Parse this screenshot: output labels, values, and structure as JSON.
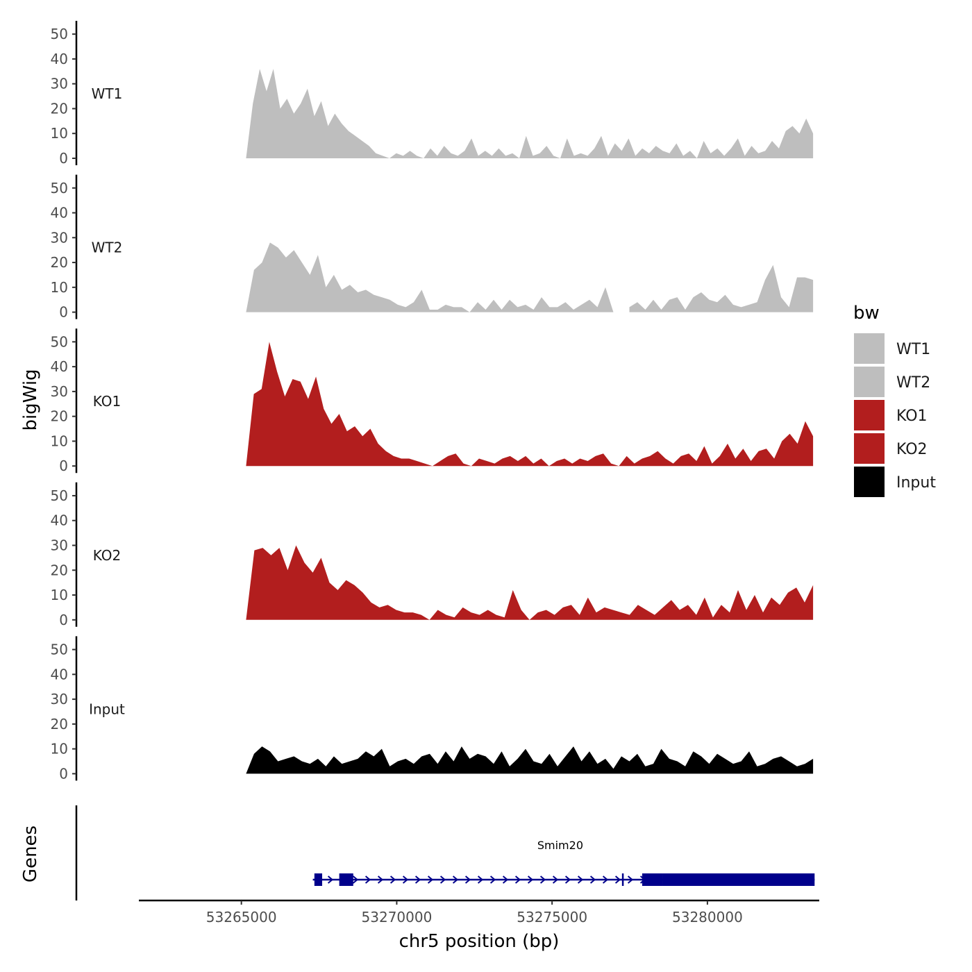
{
  "chart_data": {
    "type": "area",
    "title": "",
    "ylabel": "bigWig",
    "xlabel": "chr5 position (bp)",
    "xlim": [
      53261700,
      53283600
    ],
    "x_range_data": [
      53265150,
      53283400
    ],
    "ylim": [
      0,
      52
    ],
    "y_ticks": [
      "0",
      "10",
      "20",
      "30",
      "40",
      "50"
    ],
    "x_ticks": [
      {
        "value": 53265000,
        "label": "53265000"
      },
      {
        "value": 53270000,
        "label": "53270000"
      },
      {
        "value": 53275000,
        "label": "53275000"
      },
      {
        "value": 53280000,
        "label": "53280000"
      }
    ],
    "series": [
      {
        "name": "WT1",
        "color": "#BEBEBE",
        "values": [
          0,
          22,
          36,
          27,
          36,
          20,
          24,
          18,
          22,
          28,
          17,
          23,
          13,
          18,
          14,
          11,
          9,
          7,
          5,
          2,
          1,
          0,
          2,
          1,
          3,
          1,
          0,
          4,
          1,
          5,
          2,
          1,
          3,
          8,
          1,
          3,
          1,
          4,
          1,
          2,
          0,
          9,
          1,
          2,
          5,
          1,
          0,
          8,
          1,
          2,
          1,
          4,
          9,
          1,
          6,
          3,
          8,
          1,
          4,
          2,
          5,
          3,
          2,
          6,
          1,
          3,
          0,
          7,
          2,
          4,
          1,
          4,
          8,
          1,
          5,
          2,
          3,
          7,
          4,
          11,
          13,
          10,
          16,
          10
        ]
      },
      {
        "name": "WT2",
        "color": "#BEBEBE",
        "values": [
          0,
          17,
          20,
          28,
          26,
          22,
          25,
          20,
          15,
          23,
          10,
          15,
          9,
          11,
          8,
          9,
          7,
          6,
          5,
          3,
          2,
          4,
          9,
          1,
          1,
          3,
          2,
          2,
          0,
          4,
          1,
          5,
          1,
          5,
          2,
          3,
          1,
          6,
          2,
          2,
          4,
          1,
          3,
          5,
          2,
          10,
          0,
          null,
          2,
          4,
          1,
          5,
          1,
          5,
          6,
          1,
          6,
          8,
          5,
          4,
          7,
          3,
          2,
          3,
          4,
          13,
          19,
          6,
          2,
          14,
          14,
          13
        ]
      },
      {
        "name": "KO1",
        "color": "#B21E1E",
        "values": [
          0,
          29,
          31,
          50,
          38,
          28,
          35,
          34,
          27,
          36,
          23,
          17,
          21,
          14,
          16,
          12,
          15,
          9,
          6,
          4,
          3,
          3,
          2,
          1,
          0,
          2,
          4,
          5,
          1,
          0,
          3,
          2,
          1,
          3,
          4,
          2,
          4,
          1,
          3,
          0,
          2,
          3,
          1,
          3,
          2,
          4,
          5,
          1,
          0,
          4,
          1,
          3,
          4,
          6,
          3,
          1,
          4,
          5,
          2,
          8,
          1,
          4,
          9,
          3,
          7,
          2,
          6,
          7,
          3,
          10,
          13,
          9,
          18,
          12
        ]
      },
      {
        "name": "KO2",
        "color": "#B21E1E",
        "values": [
          0,
          28,
          29,
          26,
          29,
          20,
          30,
          23,
          19,
          25,
          15,
          12,
          16,
          14,
          11,
          7,
          5,
          6,
          4,
          3,
          3,
          2,
          0,
          4,
          2,
          1,
          5,
          3,
          2,
          4,
          2,
          1,
          12,
          4,
          0,
          3,
          4,
          2,
          5,
          6,
          2,
          9,
          3,
          5,
          4,
          3,
          2,
          6,
          4,
          2,
          5,
          8,
          4,
          6,
          2,
          9,
          1,
          6,
          3,
          12,
          4,
          10,
          3,
          9,
          6,
          11,
          13,
          7,
          14
        ]
      },
      {
        "name": "Input",
        "color": "#000000",
        "values": [
          0,
          8,
          11,
          9,
          5,
          6,
          7,
          5,
          4,
          6,
          3,
          7,
          4,
          5,
          6,
          9,
          7,
          10,
          3,
          5,
          6,
          4,
          7,
          8,
          4,
          9,
          5,
          11,
          6,
          8,
          7,
          4,
          9,
          3,
          6,
          10,
          5,
          4,
          8,
          3,
          7,
          11,
          5,
          9,
          4,
          6,
          2,
          7,
          5,
          8,
          3,
          4,
          10,
          6,
          5,
          3,
          9,
          7,
          4,
          8,
          6,
          4,
          5,
          9,
          3,
          4,
          6,
          7,
          5,
          3,
          4,
          6
        ]
      }
    ],
    "legend": {
      "title": "bw",
      "position": "right",
      "entries": [
        {
          "label": "WT1",
          "color": "#BEBEBE"
        },
        {
          "label": "WT2",
          "color": "#BEBEBE"
        },
        {
          "label": "KO1",
          "color": "#B21E1E"
        },
        {
          "label": "KO2",
          "color": "#B21E1E"
        },
        {
          "label": "Input",
          "color": "#000000"
        }
      ]
    },
    "gene_track": {
      "ylabel": "Genes",
      "color": "#00008B",
      "genes": [
        {
          "name": "Smim20",
          "start": 53267300,
          "end": 53283450,
          "strand": "+",
          "exons": [
            [
              53267350,
              53267600
            ],
            [
              53268150,
              53268600
            ],
            [
              53277250,
              53277300
            ],
            [
              53277900,
              53278550
            ],
            [
              53278550,
              53283450
            ]
          ]
        }
      ]
    }
  }
}
